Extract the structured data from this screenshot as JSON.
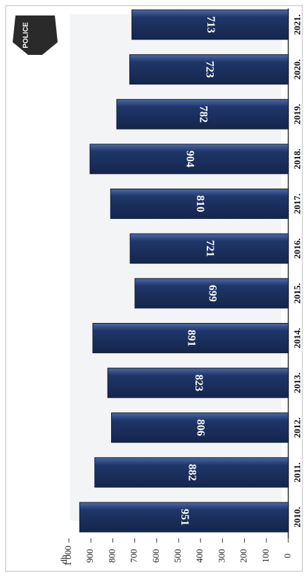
{
  "badge": "POLICE",
  "chart_data": {
    "type": "bar",
    "orientation": "horizontal",
    "y_label": "db",
    "categories": [
      "2010.",
      "2011.",
      "2012.",
      "2013.",
      "2014.",
      "2015.",
      "2016.",
      "2017.",
      "2018.",
      "2019.",
      "2020.",
      "2021."
    ],
    "values": [
      951,
      882,
      806,
      823,
      891,
      699,
      721,
      810,
      904,
      782,
      723,
      713
    ],
    "color": "#1f3668",
    "ylim": [
      0,
      1000
    ],
    "yticks": [
      0,
      100,
      200,
      300,
      400,
      500,
      600,
      700,
      800,
      900,
      {
        "value": 1000,
        "label": "1 000"
      }
    ]
  }
}
